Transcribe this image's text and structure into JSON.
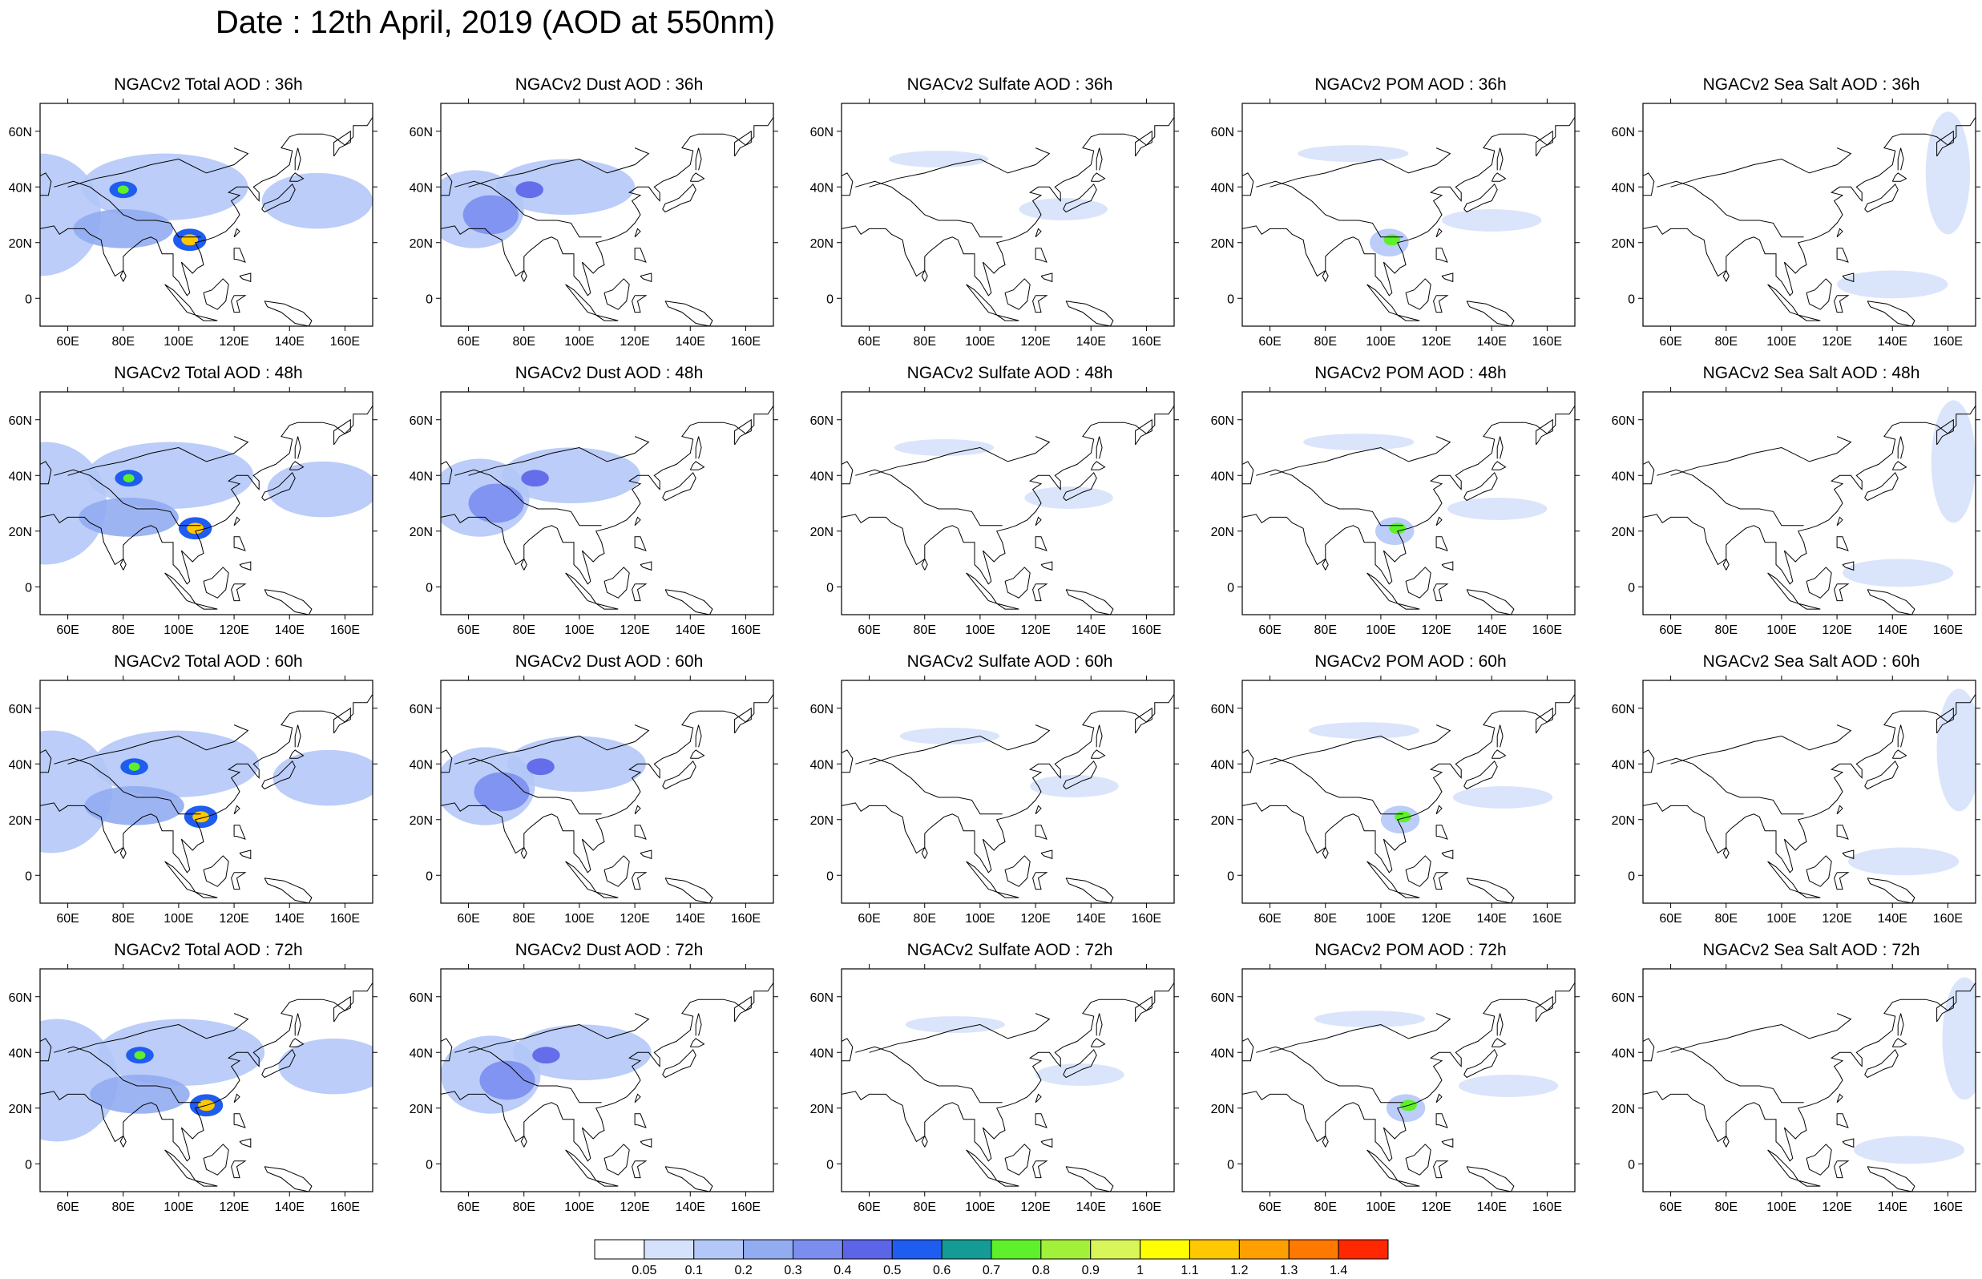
{
  "title": "Date : 12th April, 2019 (AOD at 550nm)",
  "panels": [
    {
      "title": "NGACv2 Total AOD : 36h",
      "species": "total",
      "hour": 36
    },
    {
      "title": "NGACv2 Dust AOD : 36h",
      "species": "dust",
      "hour": 36
    },
    {
      "title": "NGACv2 Sulfate AOD : 36h",
      "species": "sulfate",
      "hour": 36
    },
    {
      "title": "NGACv2 POM AOD : 36h",
      "species": "pom",
      "hour": 36
    },
    {
      "title": "NGACv2 Sea Salt AOD : 36h",
      "species": "seasalt",
      "hour": 36
    },
    {
      "title": "NGACv2 Total AOD : 48h",
      "species": "total",
      "hour": 48
    },
    {
      "title": "NGACv2 Dust AOD : 48h",
      "species": "dust",
      "hour": 48
    },
    {
      "title": "NGACv2 Sulfate AOD : 48h",
      "species": "sulfate",
      "hour": 48
    },
    {
      "title": "NGACv2 POM AOD : 48h",
      "species": "pom",
      "hour": 48
    },
    {
      "title": "NGACv2 Sea Salt AOD : 48h",
      "species": "seasalt",
      "hour": 48
    },
    {
      "title": "NGACv2 Total AOD : 60h",
      "species": "total",
      "hour": 60
    },
    {
      "title": "NGACv2 Dust AOD : 60h",
      "species": "dust",
      "hour": 60
    },
    {
      "title": "NGACv2 Sulfate AOD : 60h",
      "species": "sulfate",
      "hour": 60
    },
    {
      "title": "NGACv2 POM AOD : 60h",
      "species": "pom",
      "hour": 60
    },
    {
      "title": "NGACv2 Sea Salt AOD : 60h",
      "species": "seasalt",
      "hour": 60
    },
    {
      "title": "NGACv2 Total AOD : 72h",
      "species": "total",
      "hour": 72
    },
    {
      "title": "NGACv2 Dust AOD : 72h",
      "species": "dust",
      "hour": 72
    },
    {
      "title": "NGACv2 Sulfate AOD : 72h",
      "species": "sulfate",
      "hour": 72
    },
    {
      "title": "NGACv2 POM AOD : 72h",
      "species": "pom",
      "hour": 72
    },
    {
      "title": "NGACv2 Sea Salt  AOD : 72h",
      "species": "seasalt",
      "hour": 72
    }
  ],
  "map_extent": {
    "lon": [
      50,
      170
    ],
    "lat": [
      -10,
      70
    ]
  },
  "lon_ticks": [
    {
      "value": 60,
      "label": "60E"
    },
    {
      "value": 80,
      "label": "80E"
    },
    {
      "value": 100,
      "label": "100E"
    },
    {
      "value": 120,
      "label": "120E"
    },
    {
      "value": 140,
      "label": "140E"
    },
    {
      "value": 160,
      "label": "160E"
    }
  ],
  "lat_ticks": [
    {
      "value": 60,
      "label": "60N"
    },
    {
      "value": 40,
      "label": "40N"
    },
    {
      "value": 20,
      "label": "20N"
    },
    {
      "value": 0,
      "label": "0"
    }
  ],
  "colorbar": {
    "labels": [
      "0.05",
      "0.1",
      "0.2",
      "0.3",
      "0.4",
      "0.5",
      "0.6",
      "0.7",
      "0.8",
      "0.9",
      "1",
      "1.1",
      "1.2",
      "1.3",
      "1.4"
    ],
    "colors": [
      "#ffffff",
      "#d6e2fb",
      "#b4c8f7",
      "#92acf2",
      "#7b8ef0",
      "#5c64e8",
      "#1f5cf0",
      "#159b96",
      "#5ef02a",
      "#a2f03a",
      "#d8f55a",
      "#ffff00",
      "#ffc800",
      "#ffa000",
      "#ff7800",
      "#ff2800"
    ]
  },
  "fields": {
    "total": [
      {
        "lon": 50,
        "lat": 30,
        "rx": 22,
        "ry": 22,
        "level": 2
      },
      {
        "lon": 95,
        "lat": 40,
        "rx": 30,
        "ry": 12,
        "level": 2
      },
      {
        "lon": 150,
        "lat": 35,
        "rx": 20,
        "ry": 10,
        "level": 2
      },
      {
        "lon": 80,
        "lat": 25,
        "rx": 18,
        "ry": 7,
        "level": 3
      },
      {
        "lon": 104,
        "lat": 21,
        "rx": 6,
        "ry": 4,
        "level": 6
      },
      {
        "lon": 104,
        "lat": 21,
        "rx": 3,
        "ry": 2,
        "level": 12
      },
      {
        "lon": 80,
        "lat": 39,
        "rx": 5,
        "ry": 3,
        "level": 6
      },
      {
        "lon": 80,
        "lat": 39,
        "rx": 2,
        "ry": 1.5,
        "level": 8
      }
    ],
    "dust": [
      {
        "lon": 62,
        "lat": 32,
        "rx": 18,
        "ry": 14,
        "level": 2
      },
      {
        "lon": 95,
        "lat": 40,
        "rx": 25,
        "ry": 10,
        "level": 2
      },
      {
        "lon": 68,
        "lat": 30,
        "rx": 10,
        "ry": 7,
        "level": 4
      },
      {
        "lon": 82,
        "lat": 39,
        "rx": 5,
        "ry": 3,
        "level": 5
      }
    ],
    "sulfate": [
      {
        "lon": 85,
        "lat": 50,
        "rx": 18,
        "ry": 3,
        "level": 1
      },
      {
        "lon": 130,
        "lat": 32,
        "rx": 16,
        "ry": 4,
        "level": 1
      }
    ],
    "pom": [
      {
        "lon": 90,
        "lat": 52,
        "rx": 20,
        "ry": 3,
        "level": 1
      },
      {
        "lon": 103,
        "lat": 20,
        "rx": 7,
        "ry": 5,
        "level": 2
      },
      {
        "lon": 104,
        "lat": 21,
        "rx": 3,
        "ry": 2,
        "level": 8
      },
      {
        "lon": 140,
        "lat": 28,
        "rx": 18,
        "ry": 4,
        "level": 1
      }
    ],
    "seasalt": [
      {
        "lon": 160,
        "lat": 45,
        "rx": 8,
        "ry": 22,
        "level": 1
      },
      {
        "lon": 140,
        "lat": 5,
        "rx": 20,
        "ry": 5,
        "level": 1
      }
    ]
  }
}
